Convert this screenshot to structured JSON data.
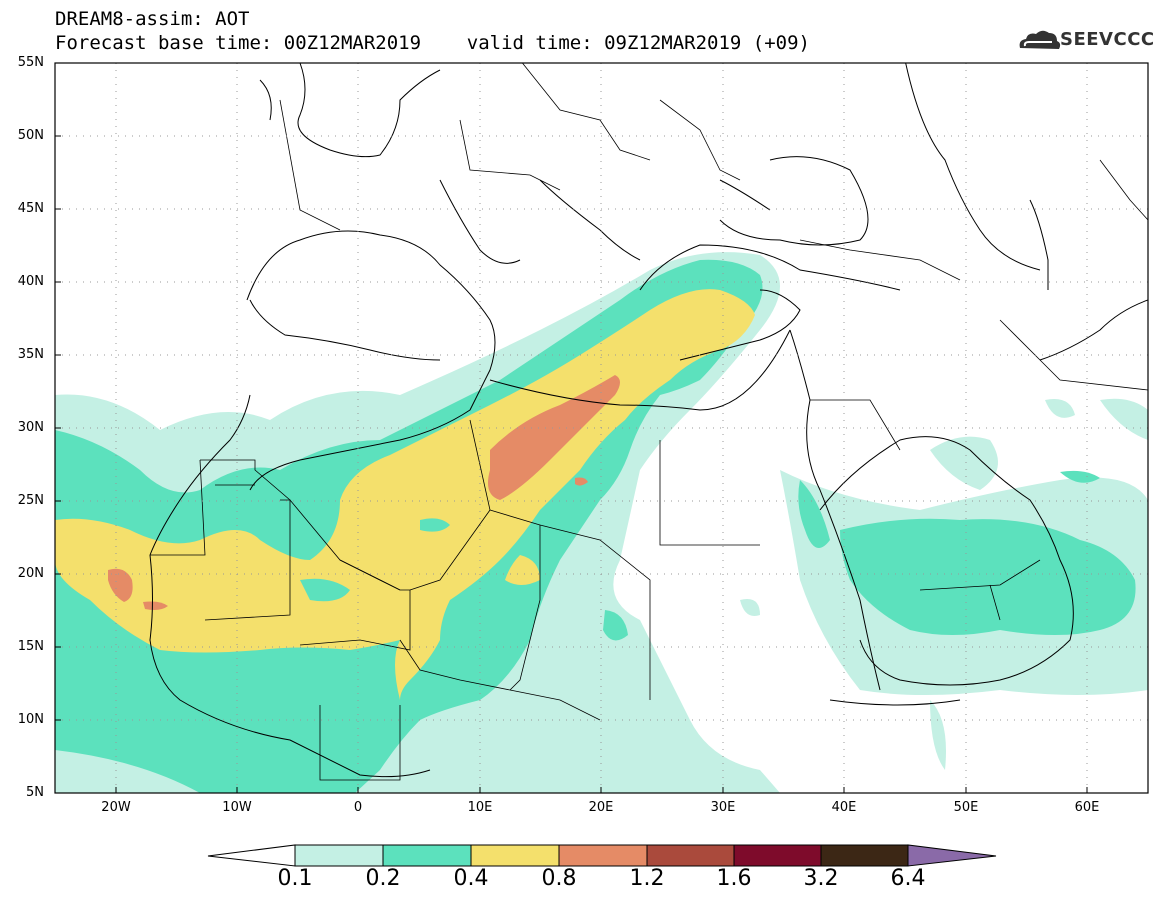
{
  "header": {
    "title_line1": "DREAM8-assim: AOT",
    "title_line2": "Forecast base time: 00Z12MAR2019    valid time: 09Z12MAR2019 (+09)",
    "logo_text": "SEEVCCC"
  },
  "map": {
    "variable": "AOT",
    "lon_range": [
      -25,
      65
    ],
    "lat_range": [
      5,
      55
    ],
    "lat_labels": [
      "55N",
      "50N",
      "45N",
      "40N",
      "35N",
      "30N",
      "25N",
      "20N",
      "15N",
      "10N",
      "5N"
    ],
    "lon_labels": [
      "20W",
      "10W",
      "0",
      "10E",
      "20E",
      "30E",
      "40E",
      "50E",
      "60E"
    ]
  },
  "colorbar": {
    "levels": [
      "0.1",
      "0.2",
      "0.4",
      "0.8",
      "1.2",
      "1.6",
      "3.2",
      "6.4"
    ],
    "colors": [
      "#ffffff",
      "#c4f0e4",
      "#5ce1bd",
      "#f4e06c",
      "#e58b66",
      "#aa4a3c",
      "#7e0b2b",
      "#3c2715",
      "#8a6aa8"
    ]
  },
  "colors": {
    "c1": "#c4f0e4",
    "c2": "#5ce1bd",
    "c3": "#f4e06c",
    "c4": "#e58b66"
  }
}
